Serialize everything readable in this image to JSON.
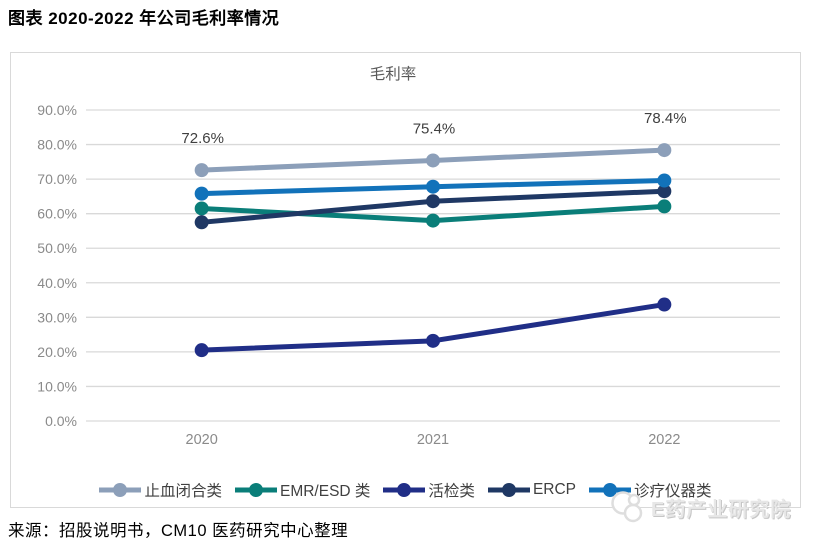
{
  "page": {
    "title": "图表 2020-2022 年公司毛利率情况",
    "source_note": "来源：招股说明书，CM10 医药研究中心整理",
    "watermark": "E药产业研究院"
  },
  "chart_data": {
    "type": "line",
    "title": "毛利率",
    "categories": [
      "2020",
      "2021",
      "2022"
    ],
    "series": [
      {
        "name": "止血闭合类",
        "color": "#8C9FB9",
        "values": [
          72.6,
          75.4,
          78.4
        ],
        "data_labels": [
          "72.6%",
          "75.4%",
          "78.4%"
        ]
      },
      {
        "name": "EMR/ESD 类",
        "color": "#0A7E79",
        "values": [
          61.5,
          58.0,
          62.1
        ]
      },
      {
        "name": "活检类",
        "color": "#202E87",
        "values": [
          20.5,
          23.2,
          33.7
        ]
      },
      {
        "name": "ERCP",
        "color": "#1F3864",
        "values": [
          57.5,
          63.6,
          66.5
        ]
      },
      {
        "name": "诊疗仪器类",
        "color": "#1272BA",
        "values": [
          65.8,
          67.8,
          69.6
        ]
      }
    ],
    "y_axis": {
      "min": 0,
      "max": 90,
      "step": 10,
      "tick_labels": [
        "0.0%",
        "10.0%",
        "20.0%",
        "30.0%",
        "40.0%",
        "50.0%",
        "60.0%",
        "70.0%",
        "80.0%",
        "90.0%"
      ]
    },
    "ylim": [
      0,
      90
    ],
    "grid": true,
    "legend_position": "bottom",
    "colors": {
      "grid": "#D9D9D9",
      "axis_text": "#8A8A8A",
      "chart_title_text": "#595959",
      "data_label_text": "#3F3F3F",
      "legend_text": "#404040"
    }
  }
}
